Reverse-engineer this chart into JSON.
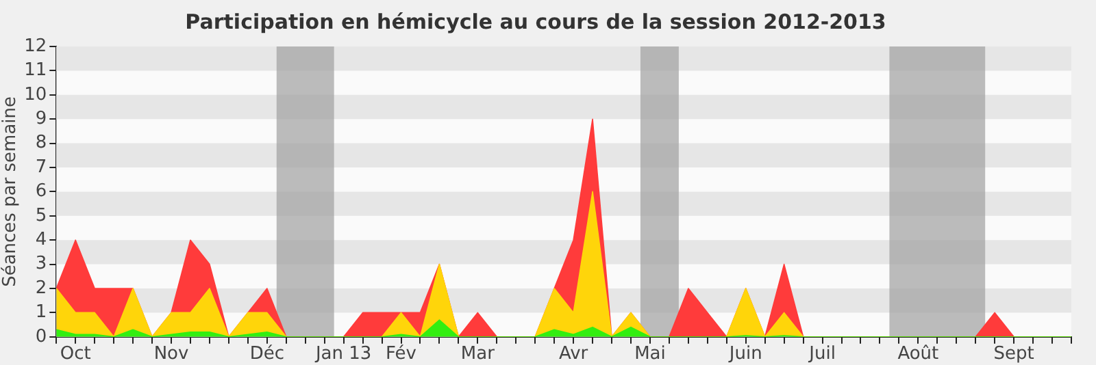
{
  "chart_data": {
    "type": "area",
    "title": "Participation en hémicycle au cours de la session 2012-2013",
    "ylabel": "Séances par semaine",
    "stacked": true,
    "legend": false,
    "marker": "none",
    "x": [
      "2012-10-01",
      "2012-10-08",
      "2012-10-15",
      "2012-10-22",
      "2012-10-29",
      "2012-11-05",
      "2012-11-12",
      "2012-11-19",
      "2012-11-26",
      "2012-12-03",
      "2012-12-10",
      "2012-12-17",
      "2012-12-24",
      "2012-12-31",
      "2013-01-07",
      "2013-01-14",
      "2013-01-21",
      "2013-01-28",
      "2013-02-04",
      "2013-02-11",
      "2013-02-18",
      "2013-02-25",
      "2013-03-04",
      "2013-03-11",
      "2013-03-18",
      "2013-03-25",
      "2013-04-01",
      "2013-04-08",
      "2013-04-15",
      "2013-04-22",
      "2013-04-29",
      "2013-05-06",
      "2013-05-13",
      "2013-05-20",
      "2013-05-27",
      "2013-06-03",
      "2013-06-10",
      "2013-06-17",
      "2013-06-24",
      "2013-07-01",
      "2013-07-08",
      "2013-07-15",
      "2013-07-22",
      "2013-07-29",
      "2013-08-05",
      "2013-08-12",
      "2013-08-19",
      "2013-08-26",
      "2013-09-02",
      "2013-09-09",
      "2013-09-16",
      "2013-09-23",
      "2013-09-30",
      "2013-10-07"
    ],
    "xlim": [
      "2012-10-01",
      "2013-10-07"
    ],
    "xticks": [
      {
        "value": "2012-10-01",
        "label": null
      },
      {
        "value": "2012-10-08",
        "label": "Oct"
      },
      {
        "value": "2012-10-15",
        "label": null
      },
      {
        "value": "2012-10-22",
        "label": null
      },
      {
        "value": "2012-10-29",
        "label": null
      },
      {
        "value": "2012-11-05",
        "label": null
      },
      {
        "value": "2012-11-12",
        "label": "Nov"
      },
      {
        "value": "2012-11-19",
        "label": null
      },
      {
        "value": "2012-11-26",
        "label": null
      },
      {
        "value": "2012-12-03",
        "label": null
      },
      {
        "value": "2012-12-10",
        "label": null
      },
      {
        "value": "2012-12-17",
        "label": "Déc"
      },
      {
        "value": "2012-12-24",
        "label": null
      },
      {
        "value": "2012-12-31",
        "label": null
      },
      {
        "value": "2013-01-07",
        "label": null
      },
      {
        "value": "2013-01-14",
        "label": "Jan 13"
      },
      {
        "value": "2013-01-21",
        "label": null
      },
      {
        "value": "2013-01-28",
        "label": null
      },
      {
        "value": "2013-02-04",
        "label": "Fév"
      },
      {
        "value": "2013-02-11",
        "label": null
      },
      {
        "value": "2013-02-18",
        "label": null
      },
      {
        "value": "2013-02-25",
        "label": null
      },
      {
        "value": "2013-03-04",
        "label": "Mar"
      },
      {
        "value": "2013-03-11",
        "label": null
      },
      {
        "value": "2013-03-18",
        "label": null
      },
      {
        "value": "2013-03-25",
        "label": null
      },
      {
        "value": "2013-04-01",
        "label": null
      },
      {
        "value": "2013-04-08",
        "label": "Avr"
      },
      {
        "value": "2013-04-15",
        "label": null
      },
      {
        "value": "2013-04-22",
        "label": null
      },
      {
        "value": "2013-04-29",
        "label": null
      },
      {
        "value": "2013-05-06",
        "label": "Mai"
      },
      {
        "value": "2013-05-13",
        "label": null
      },
      {
        "value": "2013-05-20",
        "label": null
      },
      {
        "value": "2013-05-27",
        "label": null
      },
      {
        "value": "2013-06-03",
        "label": null
      },
      {
        "value": "2013-06-10",
        "label": "Juin"
      },
      {
        "value": "2013-06-17",
        "label": null
      },
      {
        "value": "2013-06-24",
        "label": null
      },
      {
        "value": "2013-07-01",
        "label": null
      },
      {
        "value": "2013-07-08",
        "label": "Juil"
      },
      {
        "value": "2013-07-15",
        "label": null
      },
      {
        "value": "2013-07-22",
        "label": null
      },
      {
        "value": "2013-07-29",
        "label": null
      },
      {
        "value": "2013-08-05",
        "label": null
      },
      {
        "value": "2013-08-12",
        "label": "Août"
      },
      {
        "value": "2013-08-19",
        "label": null
      },
      {
        "value": "2013-08-26",
        "label": null
      },
      {
        "value": "2013-09-02",
        "label": null
      },
      {
        "value": "2013-09-09",
        "label": null
      },
      {
        "value": "2013-09-16",
        "label": "Sept"
      },
      {
        "value": "2013-09-23",
        "label": null
      },
      {
        "value": "2013-09-30",
        "label": null
      },
      {
        "value": "2013-10-07",
        "label": null
      }
    ],
    "ylim": [
      0,
      12
    ],
    "yticks": [
      0,
      1,
      2,
      3,
      4,
      5,
      6,
      7,
      8,
      9,
      10,
      11,
      12
    ],
    "bands": [
      {
        "axis": "x",
        "from": "2012-12-20T12:00",
        "to": "2013-01-10T12:00",
        "color": "#a0a0a0"
      },
      {
        "axis": "x",
        "from": "2013-05-02T12:00",
        "to": "2013-05-16T12:00",
        "color": "#a0a0a0"
      },
      {
        "axis": "x",
        "from": "2013-08-01T12:00",
        "to": "2013-09-05T12:00",
        "color": "#a0a0a0"
      }
    ],
    "series": [
      {
        "color": "#33ee11",
        "values": [
          0.3,
          0.1,
          0.1,
          0,
          0.3,
          0,
          0.1,
          0.2,
          0.2,
          0,
          0.1,
          0.2,
          0,
          0,
          0,
          0,
          0,
          0,
          0.1,
          0,
          0.7,
          0,
          0,
          0,
          0,
          0,
          0.3,
          0.1,
          0.4,
          0,
          0.4,
          0,
          0,
          0,
          0,
          0,
          0.05,
          0,
          0.05,
          0,
          0,
          0,
          0,
          0,
          0,
          0,
          0,
          0,
          0,
          0,
          0,
          0,
          0,
          0
        ]
      },
      {
        "color": "#ffd50a",
        "values": [
          1.7,
          0.9,
          0.9,
          0,
          1.7,
          0,
          0.9,
          0.8,
          1.8,
          0,
          0.9,
          0.8,
          0,
          0,
          0,
          0,
          0,
          0,
          0.9,
          0,
          2.3,
          0,
          0,
          0,
          0,
          0,
          1.7,
          0.9,
          5.6,
          0,
          0.6,
          0,
          0,
          0,
          0,
          0,
          1.95,
          0,
          0.95,
          0,
          0,
          0,
          0,
          0,
          0,
          0,
          0,
          0,
          0,
          0,
          0,
          0,
          0,
          0
        ]
      },
      {
        "color": "#ff3b3b",
        "values": [
          0,
          3,
          1,
          2,
          0,
          0,
          0,
          3,
          1,
          0,
          0,
          1,
          0,
          0,
          0,
          0,
          1,
          1,
          0,
          1,
          0,
          0,
          1,
          0,
          0,
          0,
          0,
          3,
          3,
          0,
          0,
          0,
          0,
          2,
          1,
          0,
          0,
          0,
          2,
          0,
          0,
          0,
          0,
          0,
          0,
          0,
          0,
          0,
          0,
          1,
          0,
          0,
          0,
          0
        ]
      }
    ]
  }
}
